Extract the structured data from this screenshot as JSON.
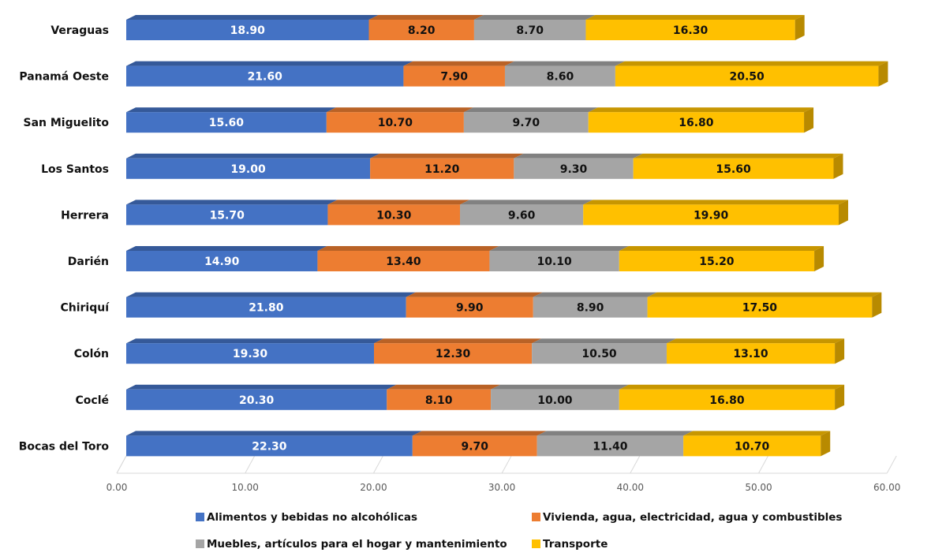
{
  "chart_data": {
    "type": "bar",
    "orientation": "horizontal",
    "stacked": true,
    "categories": [
      "Veraguas",
      "Panamá Oeste",
      "San Miguelito",
      "Los Santos",
      "Herrera",
      "Darién",
      "Chiriquí",
      "Colón",
      "Coclé",
      "Bocas del Toro"
    ],
    "series": [
      {
        "name": "Alimentos y bebidas no alcohólicas",
        "color": "#4472C4",
        "values": [
          18.9,
          21.6,
          15.6,
          19.0,
          15.7,
          14.9,
          21.8,
          19.3,
          20.3,
          22.3
        ],
        "value_labels": [
          "18.90",
          "21.60",
          "15.60",
          "19.00",
          "15.70",
          "14.90",
          "21.80",
          "19.30",
          "20.30",
          "22.30"
        ]
      },
      {
        "name": "Vivienda, agua, electricidad, agua y combustibles",
        "color": "#ED7D31",
        "values": [
          8.2,
          7.9,
          10.7,
          11.2,
          10.3,
          13.4,
          9.9,
          12.3,
          8.1,
          9.7
        ],
        "value_labels": [
          "8.20",
          "7.90",
          "10.70",
          "11.20",
          "10.30",
          "13.40",
          "9.90",
          "12.30",
          "8.10",
          "9.70"
        ]
      },
      {
        "name": "Muebles, artículos para el hogar y mantenimiento",
        "color": "#A5A5A5",
        "values": [
          8.7,
          8.6,
          9.7,
          9.3,
          9.6,
          10.1,
          8.9,
          10.5,
          10.0,
          11.4
        ],
        "value_labels": [
          "8.70",
          "8.60",
          "9.70",
          "9.30",
          "9.60",
          "10.10",
          "8.90",
          "10.50",
          "10.00",
          "11.40"
        ]
      },
      {
        "name": "Transporte",
        "color": "#FFC000",
        "values": [
          16.3,
          20.5,
          16.8,
          15.6,
          19.9,
          15.2,
          17.5,
          13.1,
          16.8,
          10.7
        ],
        "value_labels": [
          "16.30",
          "20.50",
          "16.80",
          "15.60",
          "19.90",
          "15.20",
          "17.50",
          "13.10",
          "16.80",
          "10.70"
        ]
      }
    ],
    "xlim": [
      0,
      60
    ],
    "x_ticks": [
      0,
      10,
      20,
      30,
      40,
      50,
      60
    ],
    "x_tick_labels": [
      "0.00",
      "10.00",
      "20.00",
      "30.00",
      "40.00",
      "50.00",
      "60.00"
    ],
    "grid": false,
    "legend_position": "bottom",
    "style": "3d-bar"
  }
}
